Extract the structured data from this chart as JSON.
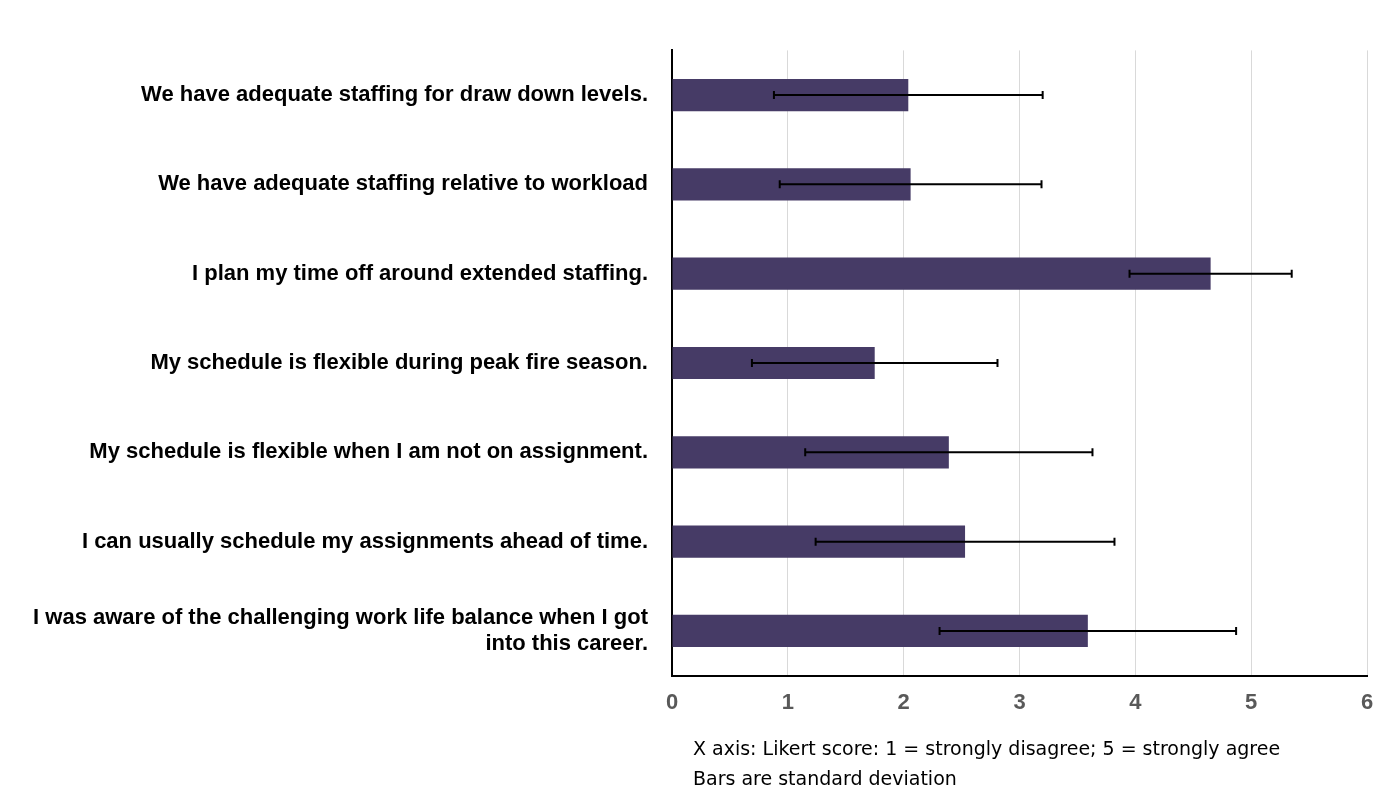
{
  "chart_data": {
    "type": "bar",
    "orientation": "horizontal",
    "categories": [
      "We have adequate staffing for draw down levels.",
      "We have adequate staffing relative to workload",
      "I plan my time off around extended staffing.",
      "My schedule is flexible during peak fire season.",
      "My schedule is flexible when I am not on assignment.",
      "I can usually schedule my assignments ahead of time.",
      "I was aware of the challenging work life balance when I got into this career."
    ],
    "values": [
      2.04,
      2.06,
      4.65,
      1.75,
      2.39,
      2.53,
      3.59
    ],
    "errors": [
      1.16,
      1.13,
      0.7,
      1.06,
      1.24,
      1.29,
      1.28
    ],
    "color": "#463b66",
    "xlim": [
      0,
      6
    ],
    "xticks": [
      0,
      1,
      2,
      3,
      4,
      5,
      6
    ],
    "grid": "x",
    "legend": false,
    "annotations": [
      "X axis: Likert score: 1 = strongly disagree; 5 = strongly agree",
      "Bars are standard deviation"
    ]
  }
}
